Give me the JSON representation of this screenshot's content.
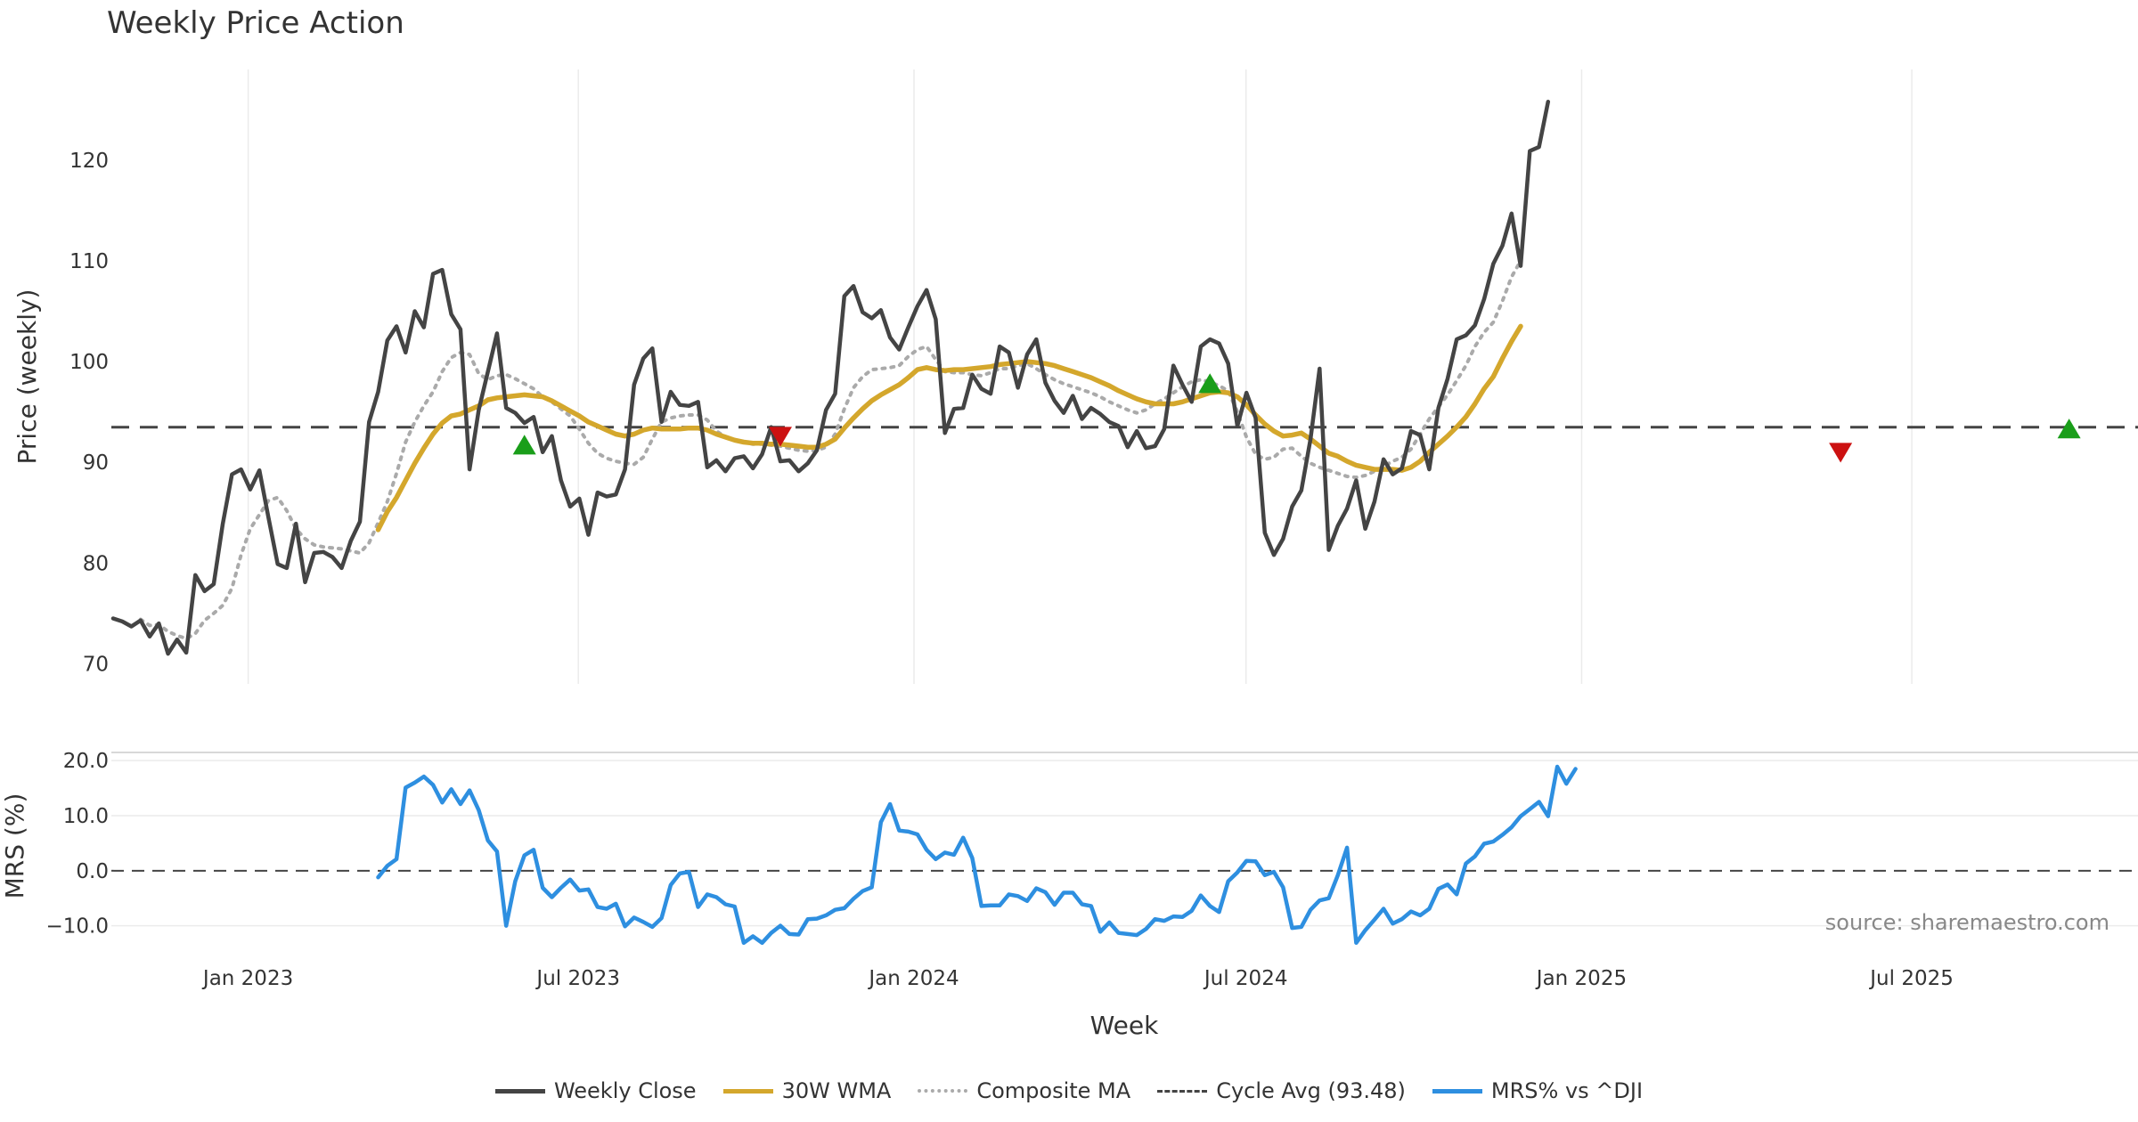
{
  "chart_data": {
    "type": "line",
    "title": "Weekly Price Action",
    "xlabel": "Week",
    "x_ticks": [
      "Jan 2023",
      "Jul 2023",
      "Jan 2024",
      "Jul 2024",
      "Jan 2025",
      "Jul 2025"
    ],
    "x_tick_dates": [
      "2023-01-01",
      "2023-07-01",
      "2024-01-01",
      "2024-07-01",
      "2025-01-01",
      "2025-07-01"
    ],
    "x_range": [
      "2022-10-18",
      "2025-11-02"
    ],
    "price_panel": {
      "ylabel": "Price (weekly)",
      "ylim": [
        68.0,
        129.0
      ],
      "yticks": [
        70,
        80,
        90,
        100,
        110,
        120
      ],
      "cycle_avg": 93.48
    },
    "mrs_panel": {
      "ylabel": "MRS (%)",
      "ylim": [
        -12.0,
        21.0
      ],
      "yticks": [
        20.0,
        10.0,
        0.0,
        -10.0
      ],
      "ytick_labels": [
        "20.0",
        "10.0",
        "0.0",
        "−10.0"
      ]
    },
    "series": [
      {
        "name": "Weekly Close",
        "color": "#444444",
        "start_week": 0,
        "values": [
          74.5,
          74.2,
          73.7,
          74.3,
          72.7,
          74.0,
          71.0,
          72.4,
          71.1,
          78.8,
          77.2,
          77.9,
          83.9,
          88.8,
          89.3,
          87.3,
          89.2,
          84.5,
          79.9,
          79.5,
          83.9,
          78.1,
          81.0,
          81.1,
          80.6,
          79.5,
          82.2,
          84.1,
          94.0,
          97.0,
          102.1,
          103.5,
          100.9,
          105.0,
          103.4,
          108.7,
          109.1,
          104.7,
          103.2,
          89.3,
          95.2,
          99.0,
          102.8,
          95.4,
          94.9,
          93.9,
          94.5,
          91.0,
          92.6,
          88.2,
          85.6,
          86.4,
          82.8,
          87.0,
          86.6,
          86.8,
          89.3,
          97.7,
          100.3,
          101.3,
          94.0,
          97.0,
          95.7,
          95.6,
          96.0,
          89.5,
          90.2,
          89.1,
          90.4,
          90.6,
          89.4,
          90.8,
          93.5,
          90.1,
          90.2,
          89.1,
          89.9,
          91.2,
          95.2,
          96.8,
          106.5,
          107.5,
          104.9,
          104.3,
          105.1,
          102.4,
          101.2,
          103.4,
          105.5,
          107.1,
          104.2,
          92.9,
          95.3,
          95.4,
          98.7,
          97.3,
          96.8,
          101.5,
          100.9,
          97.4,
          100.7,
          102.2,
          97.9,
          96.1,
          94.9,
          96.6,
          94.3,
          95.4,
          94.8,
          94.0,
          93.6,
          91.5,
          93.1,
          91.4,
          91.6,
          93.3,
          99.6,
          97.7,
          96.0,
          101.5,
          102.2,
          101.8,
          99.8,
          93.6,
          96.9,
          94.4,
          83.0,
          80.8,
          82.4,
          85.6,
          87.2,
          92.3,
          99.3,
          81.3,
          83.7,
          85.4,
          88.2,
          83.4,
          86.1,
          90.3,
          88.8,
          89.4,
          93.1,
          92.7,
          89.3,
          95.4,
          98.3,
          102.2,
          102.6,
          103.6,
          106.2,
          109.7,
          111.5,
          114.7,
          109.5,
          120.9,
          121.3,
          125.8
        ]
      },
      {
        "name": "30W WMA",
        "color": "#d4a72c",
        "start_week": 29,
        "values": [
          83.3,
          85.1,
          86.5,
          88.2,
          89.9,
          91.4,
          92.8,
          93.9,
          94.6,
          94.8,
          95.2,
          95.6,
          96.2,
          96.4,
          96.5,
          96.6,
          96.7,
          96.6,
          96.5,
          96.1,
          95.6,
          95.1,
          94.6,
          94.0,
          93.6,
          93.2,
          92.8,
          92.6,
          92.8,
          93.2,
          93.4,
          93.3,
          93.3,
          93.3,
          93.4,
          93.4,
          93.2,
          92.8,
          92.5,
          92.2,
          92.0,
          91.9,
          91.9,
          91.8,
          91.8,
          91.7,
          91.6,
          91.5,
          91.5,
          91.8,
          92.3,
          93.4,
          94.4,
          95.3,
          96.1,
          96.7,
          97.2,
          97.7,
          98.4,
          99.2,
          99.4,
          99.2,
          99.1,
          99.2,
          99.2,
          99.3,
          99.4,
          99.5,
          99.7,
          99.8,
          99.9,
          100.0,
          99.9,
          99.8,
          99.6,
          99.3,
          99.0,
          98.7,
          98.4,
          98.0,
          97.6,
          97.1,
          96.7,
          96.3,
          96.0,
          95.8,
          95.8,
          95.8,
          96.0,
          96.3,
          96.6,
          96.9,
          97.0,
          96.9,
          96.5,
          95.7,
          94.7,
          93.8,
          93.1,
          92.6,
          92.7,
          92.9,
          92.3,
          91.6,
          90.9,
          90.6,
          90.1,
          89.7,
          89.5,
          89.3,
          89.3,
          89.3,
          89.2,
          89.5,
          90.1,
          91.0,
          91.8,
          92.6,
          93.5,
          94.5,
          95.8,
          97.3,
          98.5,
          100.3,
          102.0,
          103.5
        ]
      },
      {
        "name": "Composite MA",
        "color": "#aaaaaa",
        "start_week": 3,
        "values": [
          74.4,
          73.8,
          73.9,
          73.2,
          72.8,
          72.5,
          73.0,
          74.3,
          75.0,
          75.8,
          77.5,
          80.8,
          83.4,
          84.8,
          86.2,
          86.5,
          85.2,
          83.4,
          82.4,
          81.8,
          81.6,
          81.5,
          81.4,
          81.2,
          81.0,
          82.0,
          84.0,
          86.1,
          88.9,
          92.0,
          94.0,
          95.6,
          97.0,
          99.0,
          100.4,
          100.9,
          100.7,
          98.8,
          98.2,
          98.6,
          98.7,
          98.3,
          97.8,
          97.3,
          96.5,
          96.0,
          95.3,
          94.6,
          93.3,
          91.9,
          90.9,
          90.4,
          90.1,
          89.9,
          89.8,
          90.5,
          92.3,
          94.0,
          94.4,
          94.6,
          94.7,
          94.7,
          94.2,
          93.1,
          92.5,
          92.2,
          92.0,
          91.8,
          91.8,
          91.7,
          91.6,
          91.4,
          91.2,
          91.1,
          91.2,
          91.5,
          92.8,
          95.3,
          97.4,
          98.5,
          99.2,
          99.3,
          99.4,
          99.6,
          100.5,
          101.2,
          101.5,
          100.2,
          99.0,
          98.9,
          98.9,
          98.7,
          98.6,
          98.9,
          99.3,
          99.3,
          99.6,
          99.8,
          99.3,
          98.7,
          98.2,
          97.8,
          97.5,
          97.2,
          96.9,
          96.5,
          96.0,
          95.6,
          95.2,
          94.9,
          95.2,
          95.8,
          96.3,
          96.9,
          97.5,
          98.0,
          98.2,
          98.0,
          97.6,
          97.1,
          95.0,
          92.5,
          90.8,
          90.3,
          90.5,
          91.3,
          91.4,
          90.6,
          89.9,
          89.5,
          89.2,
          88.9,
          88.6,
          88.5,
          88.7,
          89.1,
          89.6,
          90.1,
          90.5,
          91.3,
          92.8,
          94.3,
          95.5,
          96.7,
          98.1,
          99.6,
          101.5,
          102.9,
          103.9,
          106.0,
          108.4,
          110.0
        ]
      },
      {
        "name": "MRS% vs ^DJI",
        "color": "#2e8fe0",
        "panel": "mrs",
        "start_week": 29,
        "values": [
          -1.2,
          0.9,
          2.1,
          15.1,
          16.0,
          17.1,
          15.6,
          12.4,
          14.8,
          12.1,
          14.6,
          11.0,
          5.5,
          3.5,
          -10.0,
          -1.9,
          2.8,
          3.8,
          -3.1,
          -4.8,
          -3.1,
          -1.6,
          -3.6,
          -3.4,
          -6.6,
          -6.9,
          -6.0,
          -10.1,
          -8.5,
          -9.3,
          -10.2,
          -8.6,
          -2.6,
          -0.5,
          -0.2,
          -6.6,
          -4.3,
          -4.8,
          -6.1,
          -6.5,
          -13.1,
          -11.9,
          -13.1,
          -11.3,
          -10.0,
          -11.5,
          -11.6,
          -8.8,
          -8.7,
          -8.1,
          -7.1,
          -6.8,
          -5.1,
          -3.7,
          -3.0,
          8.8,
          12.1,
          7.3,
          7.1,
          6.6,
          3.8,
          2.1,
          3.3,
          2.9,
          6.0,
          2.3,
          -6.4,
          -6.3,
          -6.3,
          -4.3,
          -4.6,
          -5.5,
          -3.2,
          -3.9,
          -6.2,
          -4.0,
          -4.0,
          -6.1,
          -6.4,
          -11.1,
          -9.4,
          -11.3,
          -11.5,
          -11.7,
          -10.6,
          -8.8,
          -9.1,
          -8.3,
          -8.4,
          -7.3,
          -4.5,
          -6.4,
          -7.5,
          -1.9,
          -0.3,
          1.8,
          1.7,
          -0.8,
          -0.2,
          -3.0,
          -10.4,
          -10.2,
          -7.1,
          -5.4,
          -5.0,
          -0.8,
          4.2,
          -13.1,
          -10.8,
          -8.9,
          -6.9,
          -9.6,
          -8.8,
          -7.4,
          -8.1,
          -6.9,
          -3.3,
          -2.5,
          -4.3,
          1.3,
          2.6,
          4.9,
          5.3,
          6.5,
          7.9,
          9.9,
          11.2,
          12.5,
          9.9,
          18.9,
          15.8,
          18.5
        ]
      }
    ],
    "signals": [
      {
        "type": "buy",
        "week": 45,
        "value": 91.7
      },
      {
        "type": "sell",
        "week": 73,
        "value": 92.6
      },
      {
        "type": "buy",
        "week": 120,
        "value": 97.8
      },
      {
        "type": "sell",
        "week": 189,
        "value": 91.0
      },
      {
        "type": "buy",
        "week": 214,
        "value": 93.3
      }
    ],
    "source": "source: sharemaestro.com"
  },
  "legend": [
    {
      "label": "Weekly Close",
      "color": "#444444",
      "style": "solid"
    },
    {
      "label": "30W WMA",
      "color": "#d4a72c",
      "style": "solid"
    },
    {
      "label": "Composite MA",
      "color": "#aaaaaa",
      "style": "dotted"
    },
    {
      "label": "Cycle Avg (93.48)",
      "color": "#444444",
      "style": "dashed"
    },
    {
      "label": "MRS% vs ^DJI",
      "color": "#2e8fe0",
      "style": "solid"
    }
  ]
}
